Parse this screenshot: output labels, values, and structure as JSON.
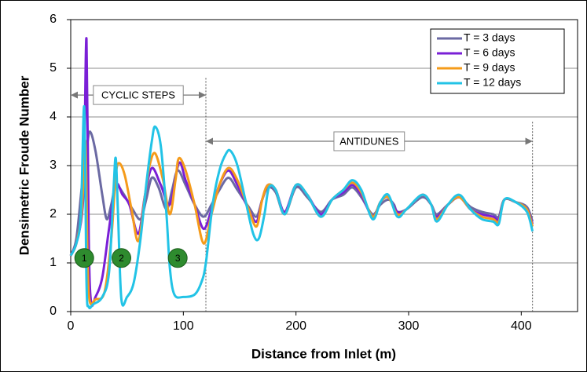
{
  "chart_data": {
    "type": "line",
    "xlabel": "Distance from Inlet (m)",
    "ylabel": "Densimetric Froude Number",
    "xlim": [
      0,
      450
    ],
    "xticks": [
      0,
      100,
      200,
      300,
      400
    ],
    "ylim": [
      0,
      6
    ],
    "yticks": [
      0,
      1,
      2,
      3,
      4,
      5,
      6
    ],
    "grid": true,
    "legend": "upper right",
    "series": [
      {
        "name": "T = 3 days",
        "color": "#6b6aa3",
        "x": [
          0,
          5,
          10,
          14,
          17,
          22,
          28,
          32,
          36,
          40,
          46,
          55,
          62,
          67,
          72,
          78,
          85,
          90,
          95,
          102,
          110,
          118,
          125,
          132,
          140,
          148,
          158,
          165,
          170,
          175,
          182,
          190,
          200,
          210,
          222,
          232,
          242,
          250,
          258,
          268,
          275,
          282,
          287,
          290,
          298,
          312,
          320,
          325,
          335,
          345,
          355,
          365,
          375,
          380,
          385,
          395,
          405,
          410
        ],
        "values": [
          1.15,
          1.5,
          2.6,
          3.3,
          3.7,
          3.3,
          2.4,
          1.9,
          2.2,
          2.6,
          2.45,
          2.1,
          1.9,
          2.3,
          2.75,
          2.55,
          2.1,
          2.5,
          2.9,
          2.6,
          2.2,
          1.95,
          2.2,
          2.5,
          2.75,
          2.5,
          2.15,
          1.95,
          2.3,
          2.55,
          2.45,
          2.0,
          2.55,
          2.35,
          2.05,
          2.3,
          2.4,
          2.55,
          2.35,
          2.0,
          2.2,
          2.3,
          2.2,
          2.05,
          2.1,
          2.35,
          2.2,
          2.0,
          2.2,
          2.35,
          2.15,
          2.05,
          2.0,
          1.95,
          2.3,
          2.25,
          2.15,
          1.85
        ]
      },
      {
        "name": "T = 6 days",
        "color": "#7a1fd6",
        "x": [
          0,
          5,
          10,
          12,
          14,
          16,
          18,
          22,
          28,
          34,
          40,
          46,
          52,
          60,
          66,
          72,
          80,
          88,
          96,
          102,
          110,
          118,
          125,
          132,
          140,
          148,
          158,
          165,
          170,
          175,
          182,
          190,
          200,
          210,
          222,
          232,
          242,
          250,
          258,
          268,
          275,
          282,
          290,
          298,
          312,
          320,
          325,
          335,
          345,
          355,
          365,
          375,
          380,
          385,
          395,
          405,
          410
        ],
        "values": [
          1.15,
          1.4,
          2.0,
          3.0,
          5.6,
          1.5,
          0.2,
          0.3,
          0.7,
          1.7,
          2.6,
          2.4,
          2.2,
          1.6,
          2.4,
          2.95,
          2.6,
          2.2,
          3.05,
          2.7,
          2.2,
          1.7,
          2.1,
          2.6,
          2.9,
          2.6,
          2.1,
          1.85,
          2.3,
          2.6,
          2.5,
          2.05,
          2.6,
          2.4,
          2.0,
          2.3,
          2.45,
          2.6,
          2.4,
          1.95,
          2.25,
          2.35,
          2.05,
          2.1,
          2.4,
          2.2,
          1.95,
          2.2,
          2.35,
          2.1,
          2.0,
          1.95,
          1.9,
          2.3,
          2.25,
          2.1,
          1.8
        ]
      },
      {
        "name": "T = 9 days",
        "color": "#f59b1a",
        "x": [
          0,
          5,
          10,
          13,
          15,
          17,
          22,
          30,
          36,
          40,
          43,
          48,
          54,
          60,
          66,
          70,
          75,
          82,
          88,
          93,
          96,
          102,
          110,
          118,
          125,
          132,
          140,
          148,
          158,
          165,
          170,
          175,
          182,
          190,
          200,
          210,
          222,
          232,
          242,
          250,
          258,
          268,
          275,
          282,
          290,
          298,
          312,
          320,
          325,
          335,
          345,
          355,
          365,
          375,
          380,
          385,
          395,
          405,
          410
        ],
        "values": [
          1.15,
          1.4,
          2.1,
          3.5,
          1.0,
          0.2,
          0.25,
          0.4,
          1.5,
          2.8,
          3.05,
          2.8,
          2.1,
          1.45,
          2.4,
          3.0,
          3.25,
          2.7,
          2.0,
          2.7,
          3.15,
          2.9,
          2.2,
          1.4,
          2.0,
          2.6,
          2.95,
          2.7,
          2.1,
          1.75,
          2.3,
          2.6,
          2.5,
          2.0,
          2.6,
          2.4,
          1.95,
          2.3,
          2.5,
          2.65,
          2.45,
          1.95,
          2.25,
          2.35,
          2.0,
          2.1,
          2.4,
          2.2,
          1.9,
          2.2,
          2.35,
          2.1,
          1.95,
          1.9,
          1.85,
          2.3,
          2.25,
          2.1,
          1.75
        ]
      },
      {
        "name": "T = 12 days",
        "color": "#22c3e6",
        "x": [
          0,
          5,
          9,
          12,
          14,
          16,
          20,
          28,
          34,
          38,
          40,
          42,
          45,
          50,
          56,
          62,
          67,
          72,
          75,
          80,
          85,
          88,
          92,
          100,
          110,
          116,
          120,
          126,
          132,
          138,
          142,
          148,
          155,
          162,
          167,
          172,
          176,
          182,
          190,
          200,
          210,
          222,
          232,
          242,
          250,
          258,
          268,
          275,
          282,
          290,
          298,
          312,
          320,
          325,
          335,
          345,
          355,
          365,
          375,
          380,
          385,
          395,
          405,
          410
        ],
        "values": [
          1.15,
          1.4,
          2.0,
          4.2,
          0.6,
          0.1,
          0.15,
          0.3,
          0.8,
          2.5,
          3.15,
          2.0,
          0.25,
          0.3,
          0.6,
          1.5,
          2.6,
          3.5,
          3.8,
          3.4,
          2.0,
          0.9,
          0.35,
          0.3,
          0.35,
          0.6,
          1.0,
          2.2,
          2.9,
          3.25,
          3.3,
          3.0,
          2.3,
          1.6,
          1.5,
          2.0,
          2.55,
          2.5,
          2.0,
          2.6,
          2.4,
          1.95,
          2.3,
          2.5,
          2.7,
          2.5,
          1.9,
          2.25,
          2.4,
          1.95,
          2.1,
          2.4,
          2.2,
          1.85,
          2.2,
          2.4,
          2.1,
          1.9,
          1.85,
          1.8,
          2.3,
          2.25,
          2.05,
          1.65
        ]
      }
    ],
    "annotations": [
      {
        "text": "CYCLIC STEPS",
        "span": [
          0,
          120
        ],
        "y": 4.45
      },
      {
        "text": "ANTIDUNES",
        "span": [
          120,
          410
        ],
        "y": 3.5
      }
    ],
    "vlines": [
      {
        "x": 120,
        "top": 4.8
      },
      {
        "x": 410,
        "top": 3.9
      }
    ],
    "markers": [
      {
        "label": "1",
        "x": 12,
        "y": 1.1
      },
      {
        "label": "2",
        "x": 45,
        "y": 1.1
      },
      {
        "label": "3",
        "x": 95,
        "y": 1.1
      }
    ]
  }
}
